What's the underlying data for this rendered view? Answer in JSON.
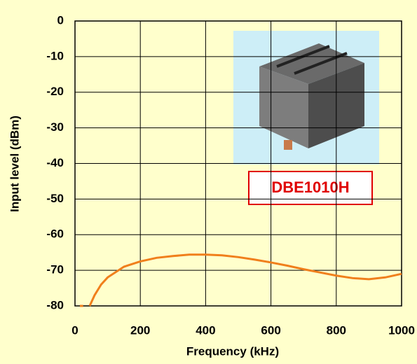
{
  "chart_data": {
    "type": "line",
    "x_label": "Frequency (kHz)",
    "y_label": "Input level (dBm)",
    "annotation": "DBE1010H",
    "x": [
      15,
      25,
      null,
      45,
      60,
      80,
      100,
      150,
      200,
      250,
      300,
      350,
      400,
      450,
      500,
      550,
      600,
      650,
      700,
      750,
      800,
      850,
      900,
      950,
      1000
    ],
    "series": [
      {
        "color": "#f07f1c",
        "values": [
          -80,
          -80,
          null,
          -80,
          -77,
          -74,
          -72,
          -69,
          -67.5,
          -66.5,
          -66,
          -65.6,
          -65.6,
          -65.8,
          -66.3,
          -67,
          -67.8,
          -68.7,
          -69.7,
          -70.6,
          -71.5,
          -72.2,
          -72.5,
          -72,
          -71
        ]
      }
    ],
    "xlim": [
      0,
      1000
    ],
    "xticks": [
      0,
      200,
      400,
      600,
      800,
      1000
    ],
    "ylim": [
      -80,
      0
    ],
    "yticks": [
      0,
      -10,
      -20,
      -30,
      -40,
      -50,
      -60,
      -70,
      -80
    ],
    "grid": true
  }
}
